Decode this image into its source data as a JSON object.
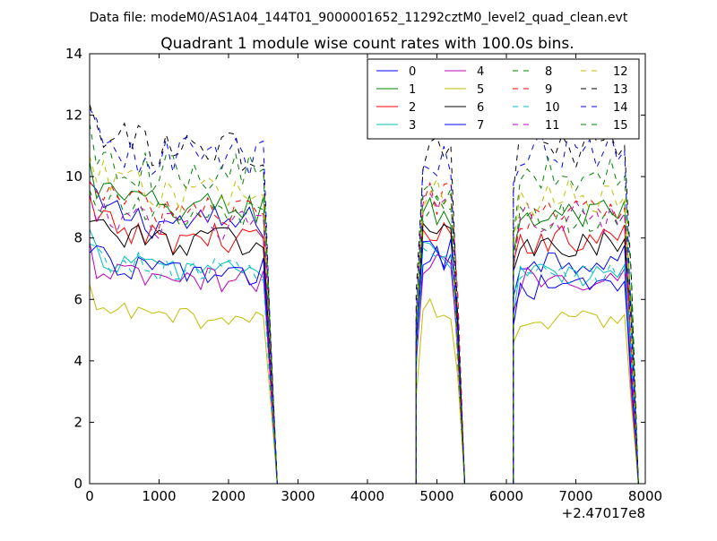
{
  "chart_data": {
    "type": "line",
    "suptitle": "Data file: modeM0/AS1A04_144T01_9000001652_11292cztM0_level2_quad_clean.evt",
    "title": "Quadrant 1 module wise count rates with 100.0s bins.",
    "xlabel": "",
    "ylabel": "",
    "x_offset_label": "+2.47017e8",
    "xlim": [
      0,
      8000
    ],
    "ylim": [
      0,
      14
    ],
    "xticks": [
      0,
      1000,
      2000,
      3000,
      4000,
      5000,
      6000,
      7000,
      8000
    ],
    "yticks": [
      0,
      2,
      4,
      6,
      8,
      10,
      12,
      14
    ],
    "xtick_labels": [
      "0",
      "1000",
      "2000",
      "3000",
      "4000",
      "5000",
      "6000",
      "7000",
      "8000"
    ],
    "ytick_labels": [
      "0",
      "2",
      "4",
      "6",
      "8",
      "10",
      "12",
      "14"
    ],
    "legend_position": "top-right",
    "bin_width": 100,
    "segments": [
      {
        "start": 0,
        "end": 2600
      },
      {
        "start": 4700,
        "end": 5300
      },
      {
        "start": 6100,
        "end": 7800
      }
    ],
    "series": [
      {
        "name": "0",
        "color": "#0000ff",
        "dash": "solid",
        "levels": [
          8.5,
          7.3,
          7.3
        ]
      },
      {
        "name": "1",
        "color": "#008000",
        "dash": "solid",
        "levels": [
          9.0,
          8.8,
          8.7
        ]
      },
      {
        "name": "2",
        "color": "#ff0000",
        "dash": "solid",
        "levels": [
          8.0,
          8.0,
          8.0
        ]
      },
      {
        "name": "3",
        "color": "#00bfbf",
        "dash": "solid",
        "levels": [
          7.0,
          7.4,
          6.8
        ]
      },
      {
        "name": "4",
        "color": "#bf00bf",
        "dash": "solid",
        "levels": [
          6.6,
          7.1,
          6.7
        ]
      },
      {
        "name": "5",
        "color": "#bfbf00",
        "dash": "solid",
        "levels": [
          5.4,
          5.7,
          5.3
        ]
      },
      {
        "name": "6",
        "color": "#000000",
        "dash": "solid",
        "levels": [
          7.9,
          8.3,
          7.7
        ]
      },
      {
        "name": "7",
        "color": "#0000ff",
        "dash": "solid",
        "levels": [
          6.9,
          7.5,
          6.4
        ]
      },
      {
        "name": "8",
        "color": "#008000",
        "dash": "dashed",
        "levels": [
          8.7,
          9.0,
          8.6
        ]
      },
      {
        "name": "9",
        "color": "#ff0000",
        "dash": "dashed",
        "levels": [
          8.9,
          9.3,
          8.8
        ]
      },
      {
        "name": "10",
        "color": "#00bfbf",
        "dash": "dashed",
        "levels": [
          7.0,
          7.6,
          6.9
        ]
      },
      {
        "name": "11",
        "color": "#bf00bf",
        "dash": "dashed",
        "levels": [
          8.4,
          9.0,
          8.7
        ]
      },
      {
        "name": "12",
        "color": "#bfbf00",
        "dash": "dashed",
        "levels": [
          9.4,
          9.6,
          9.3
        ]
      },
      {
        "name": "13",
        "color": "#000000",
        "dash": "dashed",
        "levels": [
          10.8,
          10.6,
          11.0
        ]
      },
      {
        "name": "14",
        "color": "#0000ff",
        "dash": "dashed",
        "levels": [
          10.6,
          10.4,
          10.9
        ]
      },
      {
        "name": "15",
        "color": "#008000",
        "dash": "dashed",
        "levels": [
          10.1,
          9.3,
          10.1
        ]
      }
    ]
  }
}
